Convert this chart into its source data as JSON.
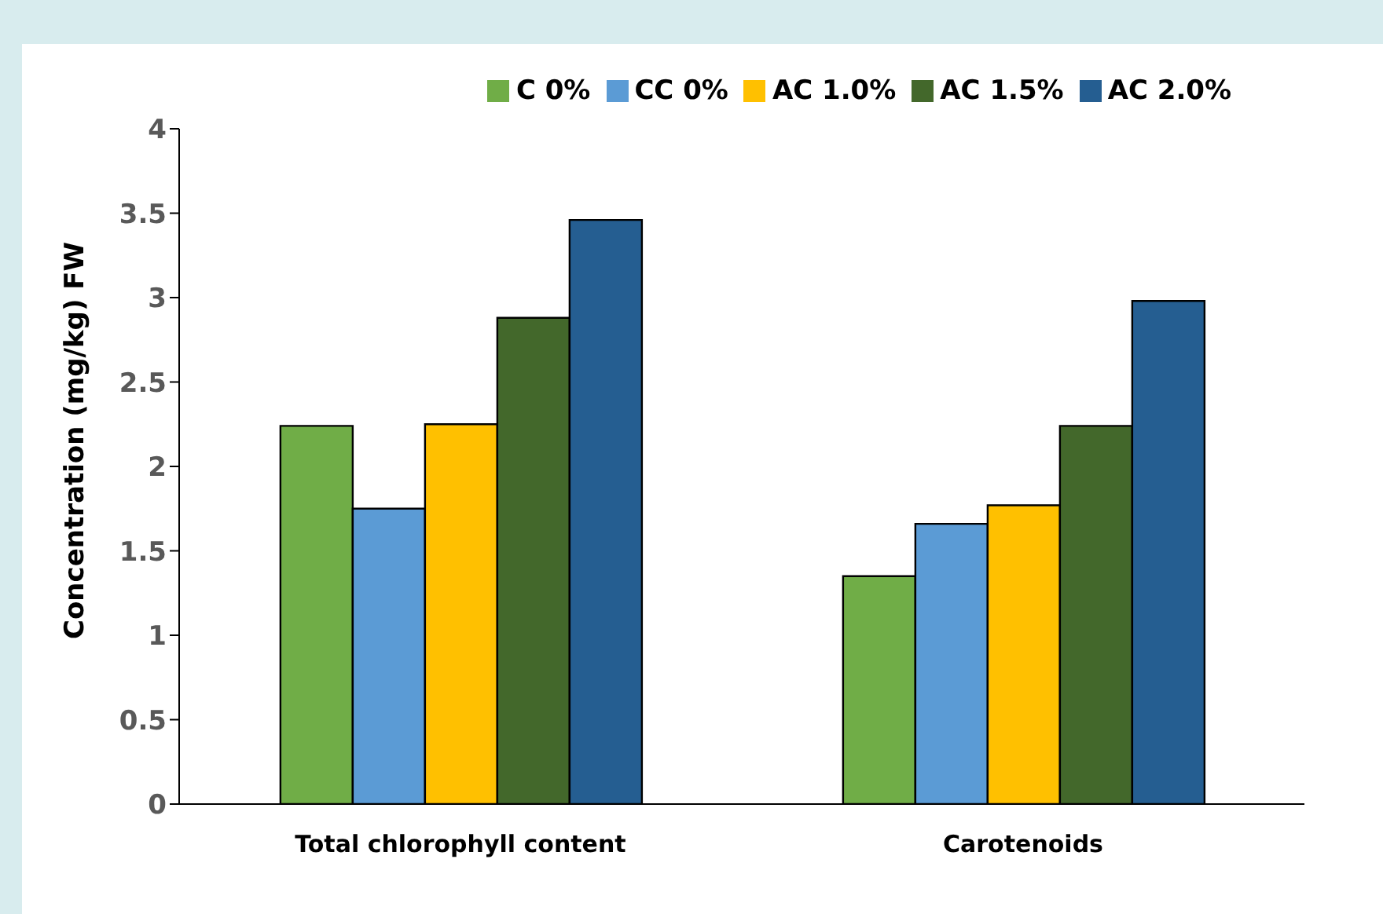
{
  "chart_data": {
    "type": "bar",
    "ylabel": "Concentration (mg/kg) FW",
    "categories": [
      "Total chlorophyll content",
      "Carotenoids"
    ],
    "series": [
      {
        "name": "C 0%",
        "color": "#70ad47",
        "values": [
          2.24,
          1.35
        ]
      },
      {
        "name": "CC 0%",
        "color": "#5b9bd5",
        "values": [
          1.75,
          1.66
        ]
      },
      {
        "name": "AC 1.0%",
        "color": "#ffc000",
        "values": [
          2.25,
          1.77
        ]
      },
      {
        "name": "AC 1.5%",
        "color": "#43682b",
        "values": [
          2.88,
          2.24
        ]
      },
      {
        "name": "AC 2.0%",
        "color": "#255e91",
        "values": [
          3.46,
          2.98
        ]
      }
    ],
    "ylim": [
      0,
      4
    ],
    "yticks": [
      0,
      0.5,
      1,
      1.5,
      2,
      2.5,
      3,
      3.5,
      4
    ],
    "grid": false,
    "legend": "top"
  }
}
